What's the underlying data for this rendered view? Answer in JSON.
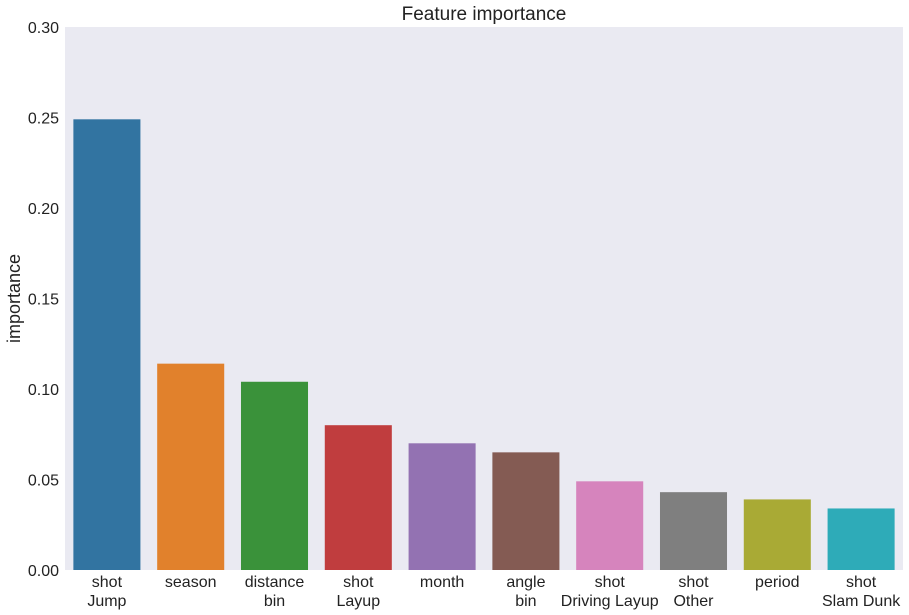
{
  "chart_data": {
    "type": "bar",
    "title": "Feature importance",
    "xlabel": "",
    "ylabel": "importance",
    "ylim": [
      0,
      0.3
    ],
    "yticks": [
      "0.00",
      "0.05",
      "0.10",
      "0.15",
      "0.20",
      "0.25",
      "0.30"
    ],
    "grid": false,
    "categories": [
      [
        "shot",
        "Jump"
      ],
      [
        "season"
      ],
      [
        "distance",
        "bin"
      ],
      [
        "shot",
        "Layup"
      ],
      [
        "month"
      ],
      [
        "angle",
        "bin"
      ],
      [
        "shot",
        "Driving Layup"
      ],
      [
        "shot",
        "Other"
      ],
      [
        "period"
      ],
      [
        "shot",
        "Slam Dunk"
      ]
    ],
    "values": [
      0.249,
      0.114,
      0.104,
      0.08,
      0.07,
      0.065,
      0.049,
      0.043,
      0.039,
      0.034
    ],
    "colors": [
      "#3274a1",
      "#e1812c",
      "#3a923a",
      "#c03d3e",
      "#9372b2",
      "#845b53",
      "#d684bd",
      "#7f7f7f",
      "#a9aa35",
      "#2eabb8"
    ],
    "background": "#eaeaf2"
  }
}
